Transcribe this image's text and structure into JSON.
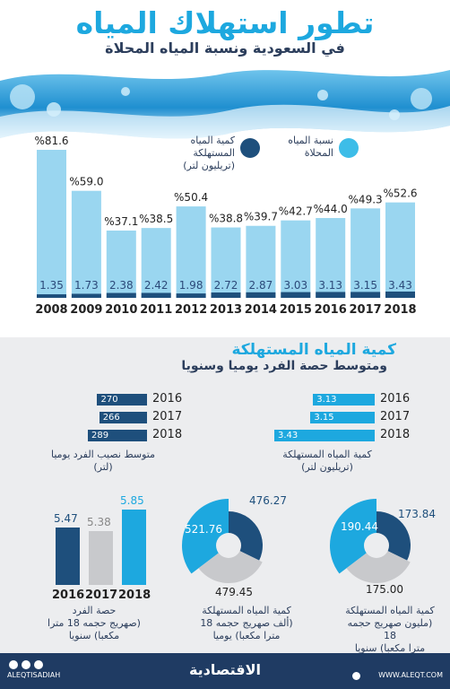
{
  "header": {
    "title": "تطور استهلاك المياه",
    "subtitle": "في السعودية ونسبة المياه المحلاة"
  },
  "legend": {
    "desalinated": "نسبة المياه\nالمحلاة",
    "consumed": "كمية المياه\nالمستهلكة\n(تريليون لتر)"
  },
  "colors": {
    "light": "#9ad6f0",
    "dark": "#1e4f7c",
    "accent": "#1da8df",
    "gray": "#c8c9cc"
  },
  "chart_data": [
    {
      "type": "bar",
      "categories": [
        "2008",
        "2009",
        "2010",
        "2011",
        "2012",
        "2013",
        "2014",
        "2015",
        "2016",
        "2017",
        "2018"
      ],
      "series": [
        {
          "name": "نسبة المياه المحلاة",
          "values": [
            81.6,
            59.0,
            37.1,
            38.5,
            50.4,
            38.8,
            39.7,
            42.7,
            44.0,
            49.3,
            52.6
          ],
          "labels": [
            "%81.6",
            "%59.0",
            "%37.1",
            "%38.5",
            "%50.4",
            "%38.8",
            "%39.7",
            "%42.7",
            "%44.0",
            "%49.3",
            "%52.6"
          ]
        },
        {
          "name": "كمية المياه المستهلكة (تريليون لتر)",
          "values": [
            1.35,
            1.73,
            2.38,
            2.42,
            1.98,
            2.72,
            2.87,
            3.03,
            3.13,
            3.15,
            3.43
          ],
          "labels": [
            "1.35",
            "1.73",
            "2.38",
            "2.42",
            "1.98",
            "2.72",
            "2.87",
            "3.03",
            "3.13",
            "3.15",
            "3.43"
          ]
        }
      ]
    },
    {
      "type": "bar",
      "orientation": "horizontal",
      "categories": [
        "2016",
        "2017",
        "2018"
      ],
      "values": [
        3.13,
        3.15,
        3.43
      ],
      "labels": [
        "3.13",
        "3.15",
        "3.43"
      ],
      "caption": "كمية المياه المستهلكة\n(تريليون لتر)"
    },
    {
      "type": "bar",
      "orientation": "horizontal",
      "categories": [
        "2016",
        "2017",
        "2018"
      ],
      "values": [
        270,
        266,
        289
      ],
      "labels": [
        "270",
        "266",
        "289"
      ],
      "caption": "متوسط نصيب الفرد يوميا\n(لتر)"
    },
    {
      "type": "pie",
      "values": [
        190.44,
        173.84,
        175.0
      ],
      "labels": [
        "190.44",
        "173.84",
        "175.00"
      ],
      "caption": "كمية المياه المستهلكة\n(مليون صهريج حجمه 18\nمترا مكعبا) سنويا"
    },
    {
      "type": "pie",
      "values": [
        521.76,
        476.27,
        479.45
      ],
      "labels": [
        "521.76",
        "476.27",
        "479.45"
      ],
      "caption": "كمية المياه المستهلكة\n(ألف صهريج حجمه 18\nمترا مكعبا) يوميا"
    },
    {
      "type": "bar",
      "categories": [
        "2016",
        "2017",
        "2018"
      ],
      "values": [
        5.47,
        5.38,
        5.85
      ],
      "labels": [
        "5.47",
        "5.38",
        "5.85"
      ],
      "caption": "حصة الفرد\n(صهريج حجمه 18 مترا\nمكعبا) سنويا"
    }
  ],
  "section2": {
    "title": "كمية المياه المستهلكة",
    "subtitle": "ومتوسط حصة الفرد يوميا وسنويا"
  },
  "footer": {
    "logo": "الاقتصادية",
    "handle": "ALEQTISADIAH",
    "url": "WWW.ALEQT.COM"
  }
}
